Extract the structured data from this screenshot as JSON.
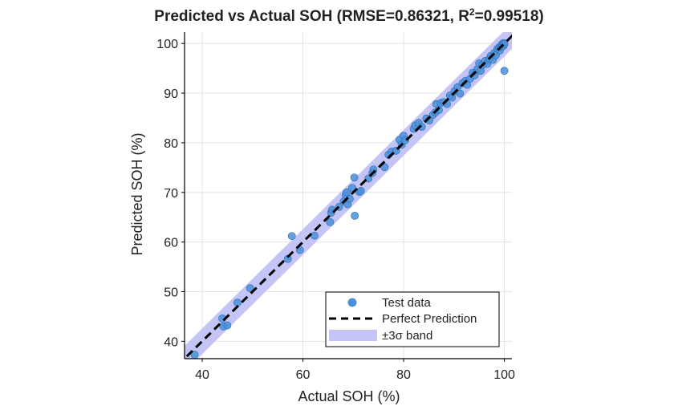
{
  "chart_data": {
    "type": "scatter",
    "title_main": "Predicted vs Actual SOH (RMSE=0.86321, R",
    "title_sup": "2",
    "title_tail": "=0.99518)",
    "xlabel": "Actual SOH (%)",
    "ylabel": "Predicted SOH (%)",
    "xlim": [
      36.5,
      101.5
    ],
    "ylim": [
      36.5,
      102.3
    ],
    "xticks": [
      40,
      60,
      80,
      100
    ],
    "yticks": [
      40,
      50,
      60,
      70,
      80,
      90,
      100
    ],
    "xtick_labels": [
      "40",
      "60",
      "80",
      "100"
    ],
    "ytick_labels": [
      "40",
      "50",
      "60",
      "70",
      "80",
      "90",
      "100"
    ],
    "grid": true,
    "legend_position": "bottom-right",
    "band_halfwidth": 2.59,
    "colors": {
      "points": "#4a90d9",
      "points_edge": "#2b6cb0",
      "line": "#000000",
      "band": "#c4c4f7",
      "grid": "#e3e3e3",
      "axis": "#000000"
    },
    "legend": [
      {
        "label": "Test data",
        "kind": "marker"
      },
      {
        "label": "Perfect Prediction",
        "kind": "dashed-line"
      },
      {
        "label": "±3σ band",
        "kind": "patch"
      }
    ],
    "series": [
      {
        "label": "Test data",
        "points": [
          [
            38.5,
            37.3
          ],
          [
            44.0,
            44.6
          ],
          [
            44.2,
            43.0
          ],
          [
            45.0,
            43.2
          ],
          [
            47.0,
            47.8
          ],
          [
            49.5,
            50.7
          ],
          [
            57.0,
            56.6
          ],
          [
            57.8,
            61.2
          ],
          [
            59.4,
            58.4
          ],
          [
            62.3,
            61.3
          ],
          [
            65.4,
            64.0
          ],
          [
            65.6,
            65.9
          ],
          [
            65.8,
            66.5
          ],
          [
            67.2,
            67.1
          ],
          [
            68.1,
            68.2
          ],
          [
            68.5,
            69.5
          ],
          [
            68.7,
            70.0
          ],
          [
            68.9,
            67.6
          ],
          [
            69.3,
            68.7
          ],
          [
            69.8,
            70.9
          ],
          [
            70.2,
            73.0
          ],
          [
            70.3,
            65.3
          ],
          [
            71.2,
            70.1
          ],
          [
            71.5,
            70.3
          ],
          [
            73.0,
            72.8
          ],
          [
            73.8,
            73.9
          ],
          [
            74.0,
            74.6
          ],
          [
            76.2,
            75.1
          ],
          [
            77.0,
            77.6
          ],
          [
            77.6,
            78.2
          ],
          [
            78.5,
            78.4
          ],
          [
            79.2,
            80.6
          ],
          [
            79.6,
            79.6
          ],
          [
            80.0,
            81.4
          ],
          [
            80.3,
            80.5
          ],
          [
            82.0,
            82.8
          ],
          [
            82.3,
            83.5
          ],
          [
            83.0,
            84.0
          ],
          [
            83.6,
            83.2
          ],
          [
            84.5,
            84.9
          ],
          [
            85.1,
            84.5
          ],
          [
            85.8,
            85.6
          ],
          [
            86.3,
            86.1
          ],
          [
            86.5,
            87.8
          ],
          [
            87.0,
            86.6
          ],
          [
            87.4,
            88.0
          ],
          [
            88.0,
            88.2
          ],
          [
            88.6,
            87.8
          ],
          [
            89.2,
            89.5
          ],
          [
            89.6,
            89.1
          ],
          [
            90.1,
            90.4
          ],
          [
            90.7,
            91.2
          ],
          [
            91.2,
            89.9
          ],
          [
            91.7,
            92.0
          ],
          [
            92.3,
            92.5
          ],
          [
            92.6,
            91.7
          ],
          [
            93.2,
            92.9
          ],
          [
            93.7,
            94.1
          ],
          [
            94.1,
            93.6
          ],
          [
            94.6,
            94.8
          ],
          [
            95.0,
            96.0
          ],
          [
            95.3,
            94.5
          ],
          [
            95.7,
            95.7
          ],
          [
            96.2,
            96.5
          ],
          [
            96.6,
            95.9
          ],
          [
            97.0,
            96.9
          ],
          [
            97.3,
            97.5
          ],
          [
            97.7,
            96.7
          ],
          [
            98.0,
            98.1
          ],
          [
            98.3,
            97.6
          ],
          [
            98.6,
            98.9
          ],
          [
            98.9,
            99.2
          ],
          [
            99.1,
            98.6
          ],
          [
            99.3,
            99.4
          ],
          [
            99.5,
            99.8
          ],
          [
            99.7,
            100.0
          ],
          [
            99.8,
            99.5
          ],
          [
            99.9,
            100.1
          ],
          [
            100.0,
            99.9
          ],
          [
            100.0,
            94.5
          ]
        ]
      }
    ]
  }
}
